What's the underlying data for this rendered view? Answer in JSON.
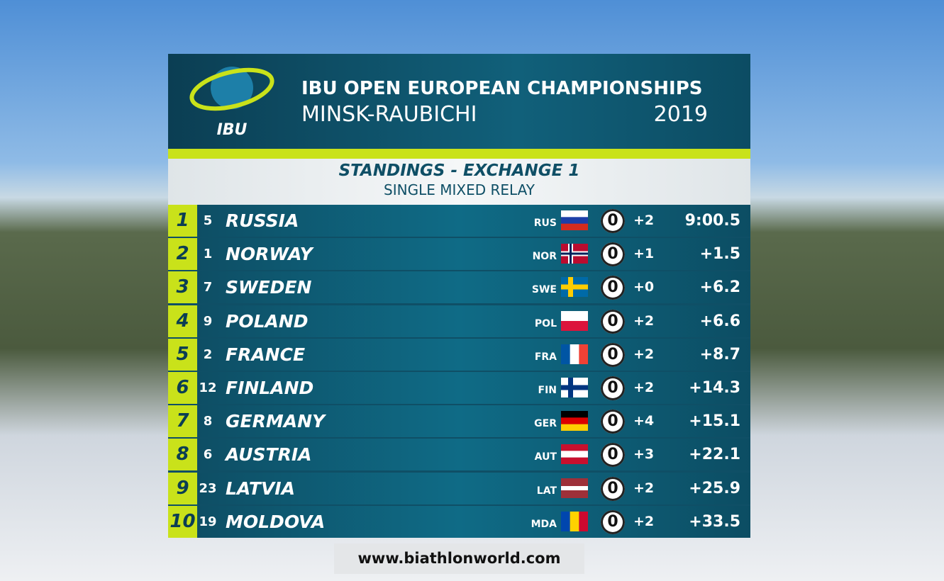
{
  "header": {
    "logo_text": "IBU",
    "title": "IBU OPEN EUROPEAN CHAMPIONSHIPS",
    "location": "MINSK-RAUBICHI",
    "year": "2019"
  },
  "subheader": {
    "title": "STANDINGS - EXCHANGE 1",
    "subtitle": "SINGLE MIXED RELAY"
  },
  "table": {
    "columns": [
      "rank",
      "bib",
      "team",
      "nation",
      "penalties",
      "spare_rounds",
      "time"
    ],
    "rows": [
      [
        1,
        5,
        "RUSSIA",
        "RUS",
        0,
        "+2",
        "9:00.5"
      ],
      [
        2,
        1,
        "NORWAY",
        "NOR",
        0,
        "+1",
        "+1.5"
      ],
      [
        3,
        7,
        "SWEDEN",
        "SWE",
        0,
        "+0",
        "+6.2"
      ],
      [
        4,
        9,
        "POLAND",
        "POL",
        0,
        "+2",
        "+6.6"
      ],
      [
        5,
        2,
        "FRANCE",
        "FRA",
        0,
        "+2",
        "+8.7"
      ],
      [
        6,
        12,
        "FINLAND",
        "FIN",
        0,
        "+2",
        "+14.3"
      ],
      [
        7,
        8,
        "GERMANY",
        "GER",
        0,
        "+4",
        "+15.1"
      ],
      [
        8,
        6,
        "AUSTRIA",
        "AUT",
        0,
        "+3",
        "+22.1"
      ],
      [
        9,
        23,
        "LATVIA",
        "LAT",
        0,
        "+2",
        "+25.9"
      ],
      [
        10,
        19,
        "MOLDOVA",
        "MDA",
        0,
        "+2",
        "+33.5"
      ]
    ]
  },
  "footer": {
    "url": "www.biathlonworld.com"
  }
}
